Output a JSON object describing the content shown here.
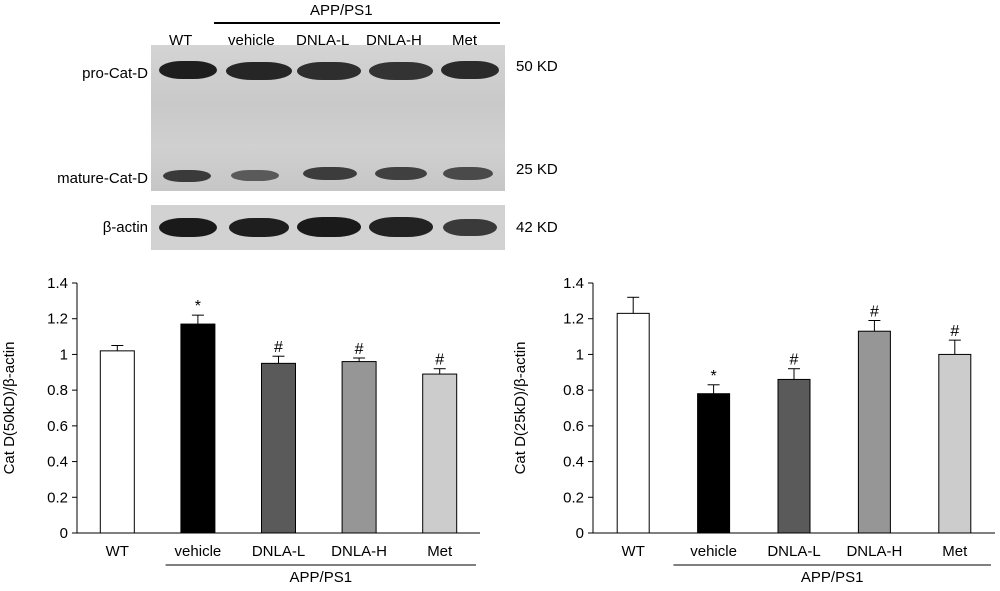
{
  "blot": {
    "group_label": "APP/PS1",
    "lanes": [
      "WT",
      "vehicle",
      "DNLA-L",
      "DNLA-H",
      "Met"
    ],
    "rows": {
      "pro": "pro-Cat-D",
      "mature": "mature-Cat-D",
      "actin": "β-actin"
    },
    "markers": {
      "pro": "50 KD",
      "mature": "25 KD",
      "actin": "42 KD"
    }
  },
  "chart_data": [
    {
      "type": "bar",
      "categories": [
        "WT",
        "vehicle",
        "DNLA-L",
        "DNLA-H",
        "Met"
      ],
      "values": [
        1.02,
        1.17,
        0.95,
        0.96,
        0.89
      ],
      "errors": [
        0.03,
        0.05,
        0.04,
        0.02,
        0.03
      ],
      "significance": [
        "",
        "*",
        "#",
        "#",
        "#"
      ],
      "bar_colors": [
        "#ffffff",
        "#000000",
        "#5a5a5a",
        "#969696",
        "#cccccc"
      ],
      "ylabel": "Cat D(50kD)/β-actin",
      "xgroup_label": "APP/PS1",
      "ylim": [
        0,
        1.4
      ],
      "yticks": [
        "0",
        "0.2",
        "0.4",
        "0.6",
        "0.8",
        "1",
        "1.2",
        "1.4"
      ],
      "grid": false
    },
    {
      "type": "bar",
      "categories": [
        "WT",
        "vehicle",
        "DNLA-L",
        "DNLA-H",
        "Met"
      ],
      "values": [
        1.23,
        0.78,
        0.86,
        1.13,
        1.0
      ],
      "errors": [
        0.09,
        0.05,
        0.06,
        0.06,
        0.08
      ],
      "significance": [
        "",
        "*",
        "#",
        "#",
        "#"
      ],
      "bar_colors": [
        "#ffffff",
        "#000000",
        "#5a5a5a",
        "#969696",
        "#cccccc"
      ],
      "ylabel": "Cat D(25kD)/β-actin",
      "xgroup_label": "APP/PS1",
      "ylim": [
        0,
        1.4
      ],
      "yticks": [
        "0",
        "0.2",
        "0.4",
        "0.6",
        "0.8",
        "1",
        "1.2",
        "1.4"
      ],
      "grid": false
    }
  ]
}
